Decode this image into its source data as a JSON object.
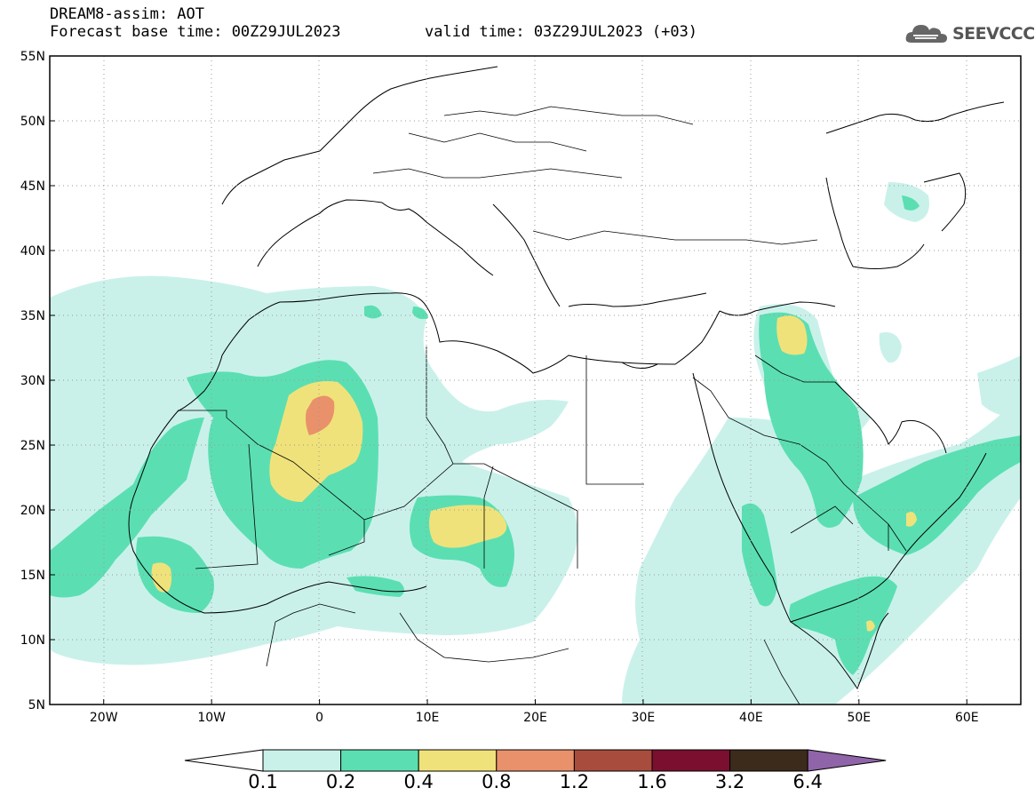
{
  "title": {
    "line1": "DREAM8-assim: AOT",
    "line2": "Forecast base time: 00Z29JUL2023",
    "valid": "valid time: 03Z29JUL2023 (+03)"
  },
  "logo": {
    "text": "SEEVCCC",
    "icon": "cloud-icon"
  },
  "map": {
    "lon_range": [
      -25,
      65
    ],
    "lat_range": [
      5,
      55
    ],
    "lat_labels": [
      "55N",
      "50N",
      "45N",
      "40N",
      "35N",
      "30N",
      "25N",
      "20N",
      "15N",
      "10N",
      "5N"
    ],
    "lon_labels": [
      "20W",
      "10W",
      "0",
      "10E",
      "20E",
      "30E",
      "40E",
      "50E",
      "60E"
    ],
    "grid": "dotted"
  },
  "colorbar": {
    "labels": [
      "0.1",
      "0.2",
      "0.4",
      "0.8",
      "1.2",
      "1.6",
      "3.2",
      "6.4"
    ],
    "colors": [
      "#ffffff",
      "#c9f1ea",
      "#5bdfb2",
      "#f0e27a",
      "#e9916a",
      "#a84c3d",
      "#7b0f2f",
      "#3c2a1b",
      "#8f64a8"
    ]
  },
  "aot_levels": {
    "c1": "#c9f1ea",
    "c2": "#5bdfb2",
    "c3": "#f0e27a",
    "c4": "#e9916a"
  }
}
